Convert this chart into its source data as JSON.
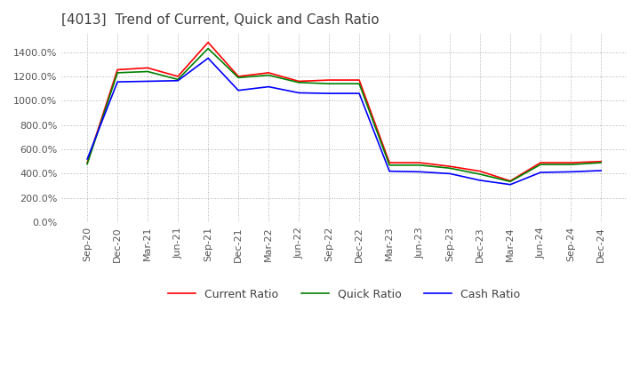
{
  "title": "[4013]  Trend of Current, Quick and Cash Ratio",
  "title_fontsize": 11,
  "title_color": "#404040",
  "background_color": "#ffffff",
  "plot_bg_color": "#ffffff",
  "grid_color": "#b0b0b0",
  "ylim": [
    0,
    1550
  ],
  "yticks": [
    0,
    200,
    400,
    600,
    800,
    1000,
    1200,
    1400
  ],
  "x_labels": [
    "Sep-20",
    "Dec-20",
    "Mar-21",
    "Jun-21",
    "Sep-21",
    "Dec-21",
    "Mar-22",
    "Jun-22",
    "Sep-22",
    "Dec-22",
    "Mar-23",
    "Jun-23",
    "Sep-23",
    "Dec-23",
    "Mar-24",
    "Jun-24",
    "Sep-24",
    "Dec-24"
  ],
  "current_ratio": [
    490,
    1255,
    1270,
    1200,
    1480,
    1200,
    1230,
    1160,
    1170,
    1170,
    490,
    490,
    460,
    420,
    340,
    490,
    490,
    500
  ],
  "quick_ratio": [
    480,
    1230,
    1240,
    1175,
    1430,
    1190,
    1210,
    1150,
    1140,
    1140,
    470,
    470,
    445,
    395,
    335,
    475,
    475,
    490
  ],
  "cash_ratio": [
    520,
    1155,
    1160,
    1165,
    1350,
    1085,
    1115,
    1065,
    1060,
    1060,
    420,
    415,
    400,
    345,
    310,
    410,
    415,
    425
  ],
  "current_color": "#ff0000",
  "quick_color": "#008000",
  "cash_color": "#0000ff",
  "line_width": 1.2,
  "legend_labels": [
    "Current Ratio",
    "Quick Ratio",
    "Cash Ratio"
  ],
  "legend_fontsize": 9
}
